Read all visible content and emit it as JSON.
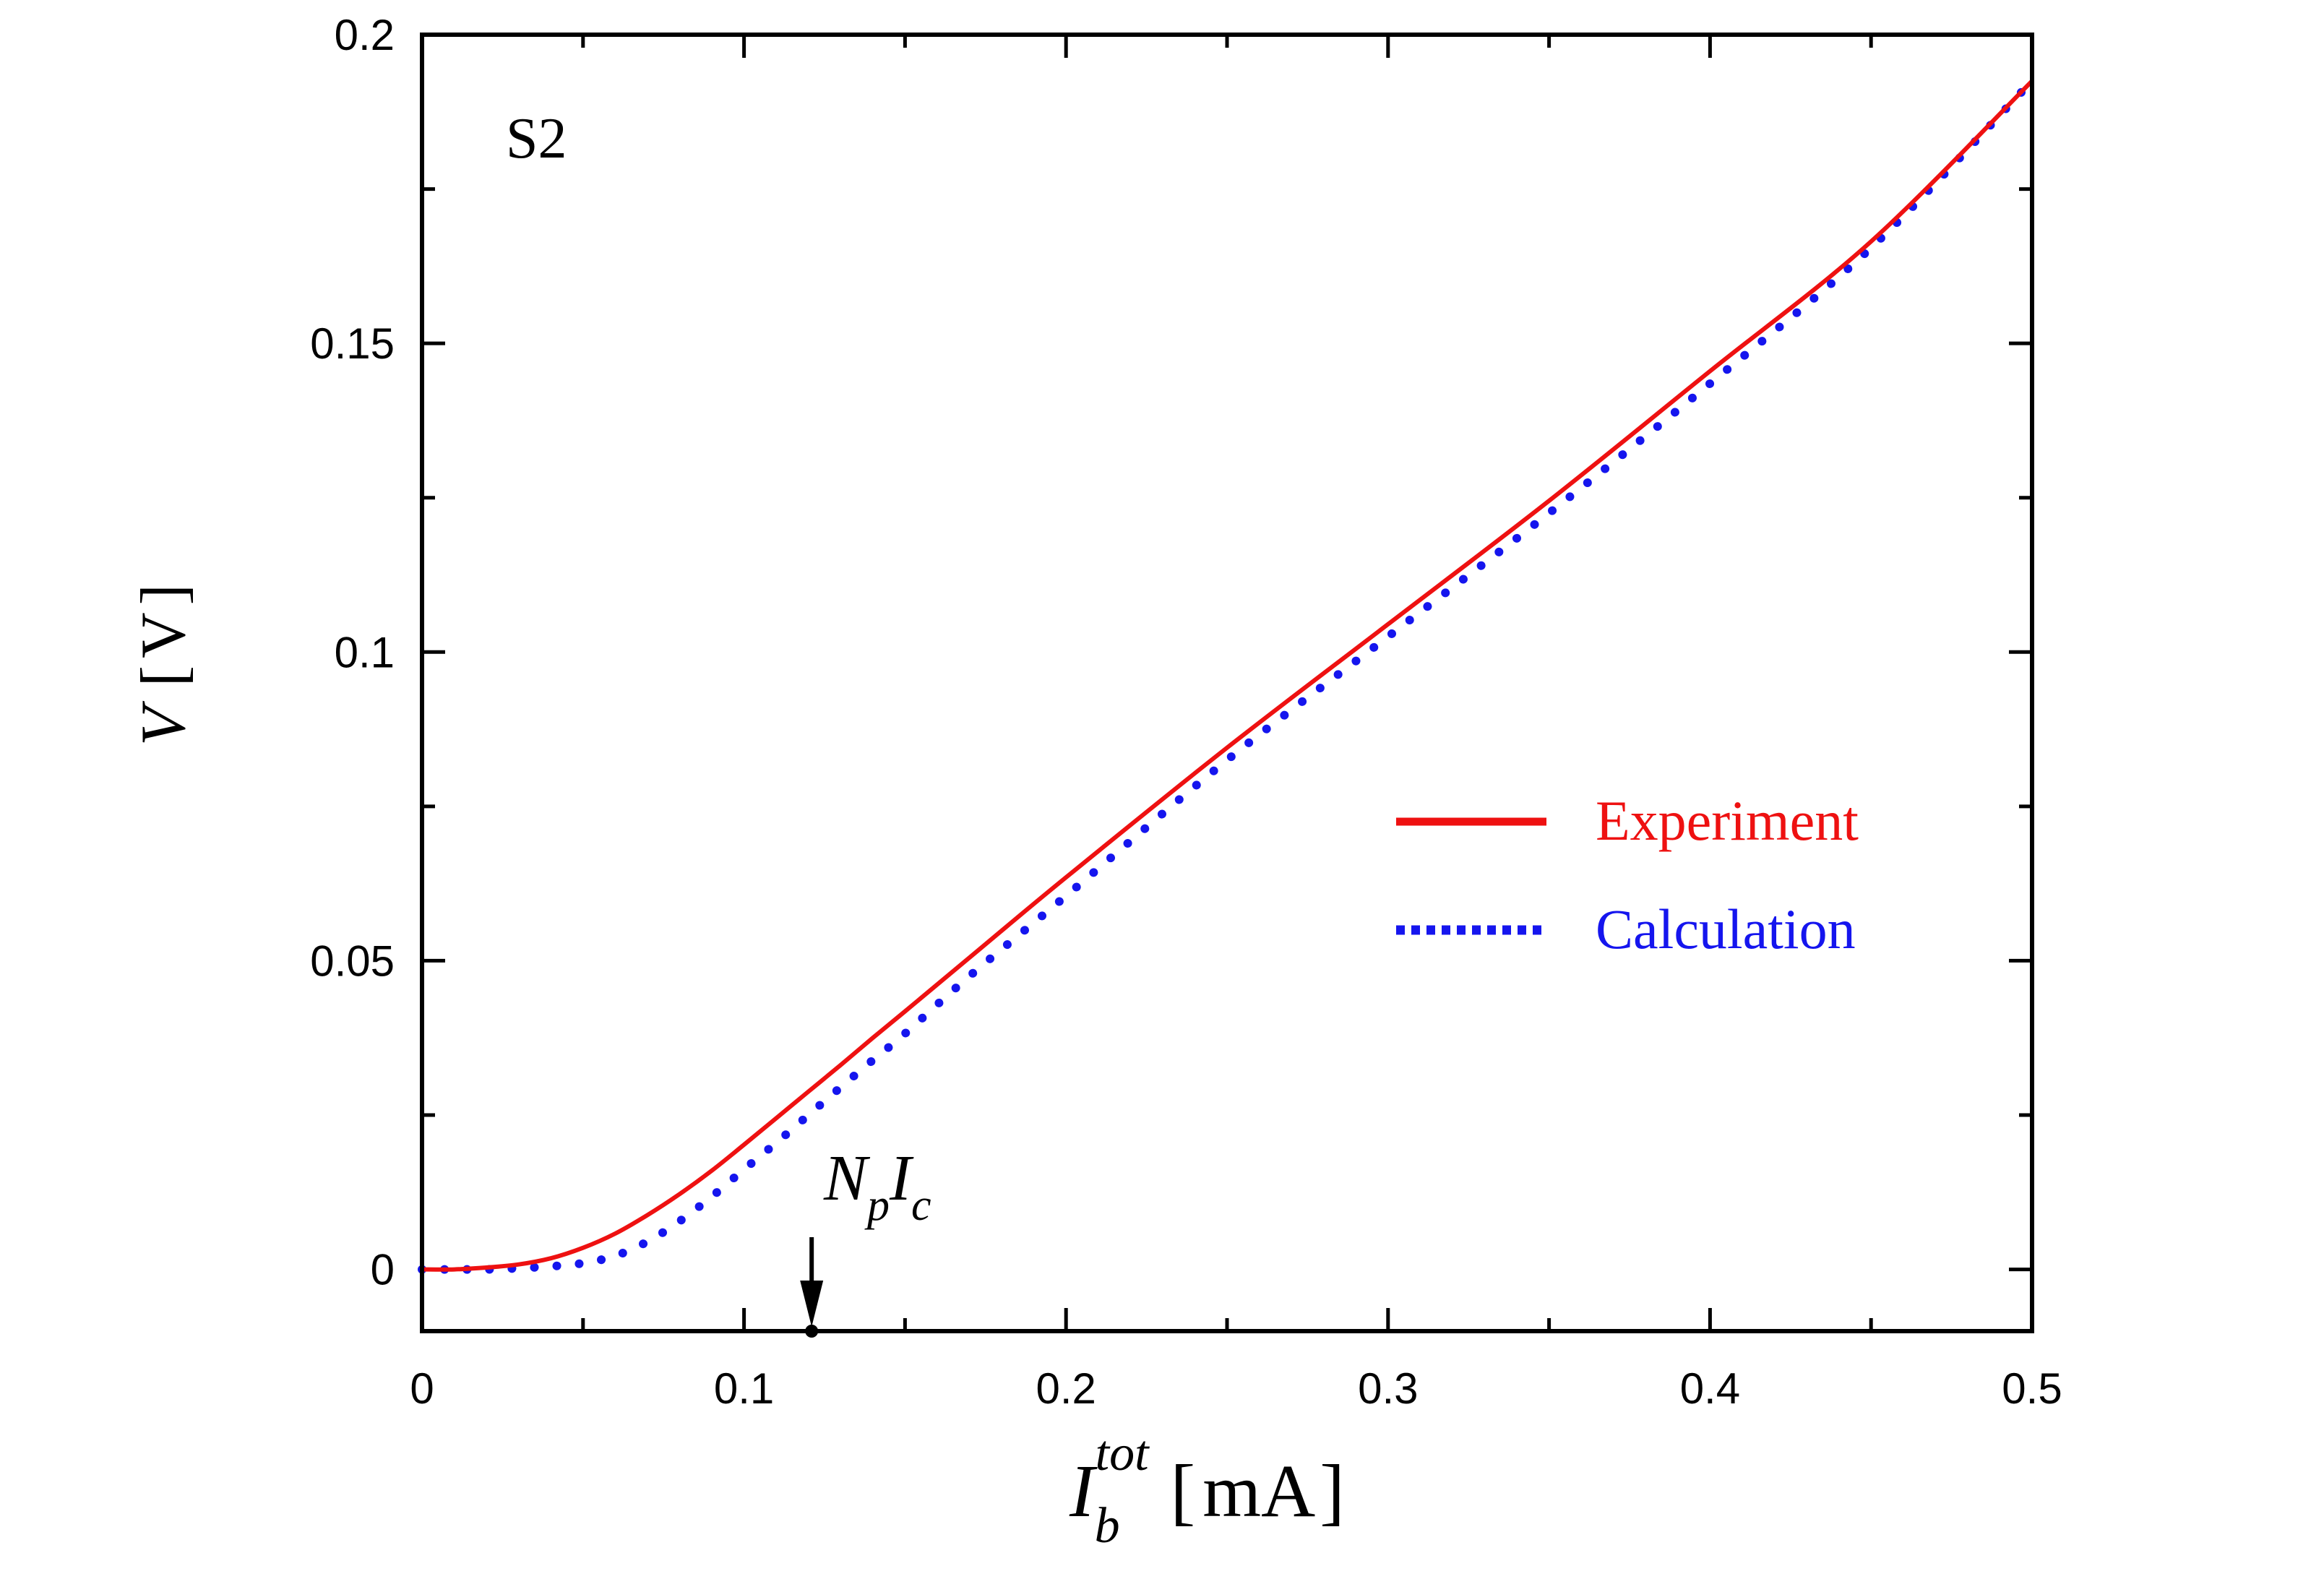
{
  "chart_data": {
    "type": "line",
    "panel_label": "S2",
    "xlabel": {
      "symbol": "I",
      "subscript": "b",
      "superscript": "tot",
      "unit": "mA"
    },
    "ylabel": {
      "symbol": "V",
      "unit": "V"
    },
    "xlim": [
      0,
      0.5
    ],
    "ylim": [
      -0.01,
      0.2
    ],
    "xticks": [
      0,
      0.1,
      0.2,
      0.3,
      0.4,
      0.5
    ],
    "xtick_labels": [
      "0",
      "0.1",
      "0.2",
      "0.3",
      "0.4",
      "0.5"
    ],
    "yticks": [
      0,
      0.05,
      0.1,
      0.15,
      0.2
    ],
    "ytick_labels": [
      "0",
      "0.05",
      "0.1",
      "0.15",
      "0.2"
    ],
    "grid": false,
    "legend_position": "center-right",
    "series": [
      {
        "name": "Experiment",
        "color": "#ee1111",
        "style": "solid",
        "x": [
          0,
          0.01,
          0.02,
          0.03,
          0.04,
          0.05,
          0.06,
          0.07,
          0.08,
          0.09,
          0.1,
          0.11,
          0.12,
          0.13,
          0.14,
          0.15,
          0.17,
          0.2,
          0.25,
          0.3,
          0.35,
          0.4,
          0.45,
          0.5
        ],
        "y": [
          0,
          0,
          0.0003,
          0.0008,
          0.0018,
          0.0035,
          0.0058,
          0.0088,
          0.0122,
          0.016,
          0.0202,
          0.0245,
          0.0288,
          0.0331,
          0.0375,
          0.0418,
          0.0505,
          0.0635,
          0.0845,
          0.1045,
          0.1245,
          0.1455,
          0.1665,
          0.1925
        ]
      },
      {
        "name": "Calculation",
        "color": "#1515ee",
        "style": "dotted",
        "x": [
          0,
          0.01,
          0.02,
          0.03,
          0.04,
          0.05,
          0.06,
          0.07,
          0.08,
          0.09,
          0.1,
          0.11,
          0.12,
          0.13,
          0.14,
          0.15,
          0.17,
          0.2,
          0.25,
          0.3,
          0.35,
          0.4,
          0.45,
          0.5
        ],
        "y": [
          0,
          0,
          0,
          0.0002,
          0.0005,
          0.001,
          0.0022,
          0.0045,
          0.0078,
          0.0118,
          0.0162,
          0.0205,
          0.025,
          0.0295,
          0.0339,
          0.0382,
          0.0475,
          0.0605,
          0.0825,
          0.1025,
          0.1225,
          0.1435,
          0.1655,
          0.1925
        ]
      }
    ],
    "annotation": {
      "text_main": "N",
      "text_sub_1": "p",
      "text_main_2": "I",
      "text_sub_2": "c",
      "x": 0.121
    }
  }
}
